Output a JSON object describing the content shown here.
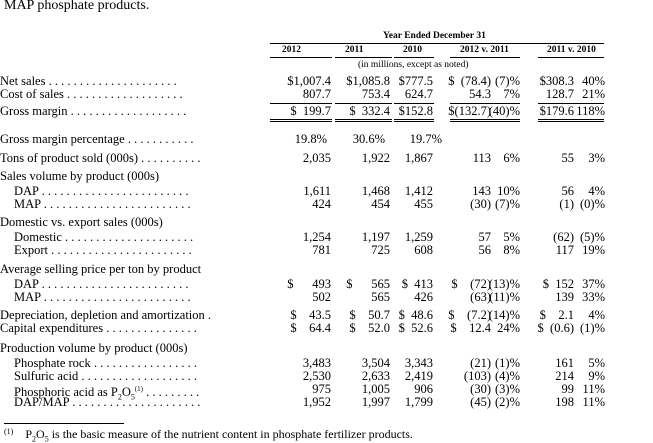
{
  "intro_text": "MAP phosphate products.",
  "header": {
    "period": "Year Ended December 31",
    "columns": [
      "2012",
      "2011",
      "2010",
      "2012 v. 2011",
      "2011 v. 2010"
    ],
    "units": "(in millions, except as noted)"
  },
  "rows": [
    {
      "label": "Net sales . . . . . . . . . . . . . . . . . . . . .",
      "v2012": "$1,007.4",
      "v2011": "$1,085.8",
      "v2010": "$777.5",
      "d1a": "$  (78.4)",
      "d1b": "(7)%",
      "d2a": "$308.3",
      "d2b": "40%"
    },
    {
      "label": "Cost of sales . . . . . . . . . . . . . . . . . . .",
      "v2012": "807.7",
      "v2011": "753.4",
      "v2010": "624.7",
      "d1a": "54.3",
      "d1b": "7%",
      "d2a": "128.7",
      "d2b": "21%"
    },
    {
      "label": "Gross margin . . . . . . . . . . . . . . . . . . .",
      "v2012": "$  199.7",
      "v2011": "$  332.4",
      "v2010": "$152.8",
      "d1a": "$(132.7)",
      "d1b": "(40)%",
      "d2a": "$179.6",
      "d2b": "118%"
    },
    {
      "label": "Gross margin percentage  . . . . . . . . . . .",
      "v2012": "19.8%",
      "v2011": "30.6%",
      "v2010": "19.7%",
      "d1a": "",
      "d1b": "",
      "d2a": "",
      "d2b": ""
    },
    {
      "label": "Tons of product sold (000s) . . . . . . . . . .",
      "v2012": "2,035",
      "v2011": "1,922",
      "v2010": "1,867",
      "d1a": "113",
      "d1b": "6%",
      "d2a": "55",
      "d2b": "3%"
    },
    {
      "label": "Sales volume by product (000s)",
      "v2012": "",
      "v2011": "",
      "v2010": "",
      "d1a": "",
      "d1b": "",
      "d2a": "",
      "d2b": ""
    },
    {
      "label": "DAP  . . . . . . . . . . . . . . . . . . . . . . . .",
      "v2012": "1,611",
      "v2011": "1,468",
      "v2010": "1,412",
      "d1a": "143",
      "d1b": "10%",
      "d2a": "56",
      "d2b": "4%"
    },
    {
      "label": "MAP  . . . . . . . . . . . . . . . . . . . . . . . .",
      "v2012": "424",
      "v2011": "454",
      "v2010": "455",
      "d1a": "(30)",
      "d1b": "(7)%",
      "d2a": "(1)",
      "d2b": "(0)%"
    },
    {
      "label": "Domestic vs. export sales (000s)",
      "v2012": "",
      "v2011": "",
      "v2010": "",
      "d1a": "",
      "d1b": "",
      "d2a": "",
      "d2b": ""
    },
    {
      "label": "Domestic . . . . . . . . . . . . . . . . . . . . .",
      "v2012": "1,254",
      "v2011": "1,197",
      "v2010": "1,259",
      "d1a": "57",
      "d1b": "5%",
      "d2a": "(62)",
      "d2b": "(5)%"
    },
    {
      "label": "Export . . . . . . . . . . . . . . . . . . . . . . .",
      "v2012": "781",
      "v2011": "725",
      "v2010": "608",
      "d1a": "56",
      "d1b": "8%",
      "d2a": "117",
      "d2b": "19%"
    },
    {
      "label": "Average selling price per ton by product",
      "v2012": "",
      "v2011": "",
      "v2010": "",
      "d1a": "",
      "d1b": "",
      "d2a": "",
      "d2b": ""
    },
    {
      "label": "DAP  . . . . . . . . . . . . . . . . . . . . . . . .",
      "v2012": "$      493",
      "v2011": "$      565",
      "v2010": "$  413",
      "d1a": "$    (72)",
      "d1b": "(13)%",
      "d2a": "$  152",
      "d2b": "37%"
    },
    {
      "label": "MAP  . . . . . . . . . . . . . . . . . . . . . . . .",
      "v2012": "502",
      "v2011": "565",
      "v2010": "426",
      "d1a": "(63)",
      "d1b": "(11)%",
      "d2a": "139",
      "d2b": "33%"
    },
    {
      "label": "Depreciation, depletion and amortization .",
      "v2012": "$    43.5",
      "v2011": "$    50.7",
      "v2010": "$  48.6",
      "d1a": "$    (7.2)",
      "d1b": "(14)%",
      "d2a": "$    2.1",
      "d2b": "4%"
    },
    {
      "label": "Capital expenditures . . . . . . . . . . . . . . .",
      "v2012": "$    64.4",
      "v2011": "$    52.0",
      "v2010": "$  52.6",
      "d1a": "$    12.4",
      "d1b": "24%",
      "d2a": "$  (0.6)",
      "d2b": "(1)%"
    },
    {
      "label": "Production volume by product (000s)",
      "v2012": "",
      "v2011": "",
      "v2010": "",
      "d1a": "",
      "d1b": "",
      "d2a": "",
      "d2b": ""
    },
    {
      "label": "Phosphate rock . . . . . . . . . . . . . . . . .",
      "v2012": "3,483",
      "v2011": "3,504",
      "v2010": "3,343",
      "d1a": "(21)",
      "d1b": "(1)%",
      "d2a": "161",
      "d2b": "5%"
    },
    {
      "label": "Sulfuric acid . . . . . . . . . . . . . . . . . . .",
      "v2012": "2,530",
      "v2011": "2,633",
      "v2010": "2,419",
      "d1a": "(103)",
      "d1b": "(4)%",
      "d2a": "214",
      "d2b": "9%"
    },
    {
      "label_pre": "Phosphoric acid as P",
      "label_sub": "2",
      "label_mid": "O",
      "label_sub2": "5",
      "label_sup": "(1)",
      "label_post": " . . . . . . . . .",
      "v2012": "975",
      "v2011": "1,005",
      "v2010": "906",
      "d1a": "(30)",
      "d1b": "(3)%",
      "d2a": "99",
      "d2b": "11%"
    },
    {
      "label": "DAP/MAP . . . . . . . . . . . . . . . . . . . . .",
      "v2012": "1,952",
      "v2011": "1,997",
      "v2010": "1,799",
      "d1a": "(45)",
      "d1b": "(2)%",
      "d2a": "198",
      "d2b": "11%"
    }
  ],
  "footnote": {
    "mark": "(1)",
    "text_pre": "P",
    "sub1": "2",
    "text_mid": "O",
    "sub2": "5",
    "text_post": " is the basic measure of the nutrient content in phosphate fertilizer products."
  }
}
